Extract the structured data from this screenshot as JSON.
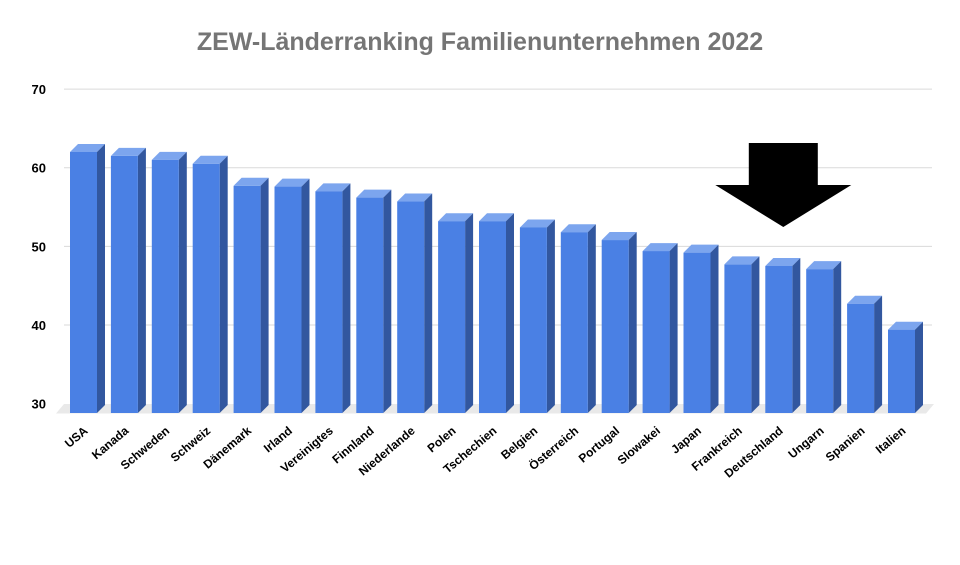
{
  "chart_data": {
    "type": "bar",
    "style": "3d-column",
    "title": "ZEW-Länderranking Familienunternehmen 2022",
    "categories": [
      "USA",
      "Kanada",
      "Schweden",
      "Schweiz",
      "Dänemark",
      "Irland",
      "Vereinigtes",
      "Finnland",
      "Niederlande",
      "Polen",
      "Tschechien",
      "Belgien",
      "Österreich",
      "Portugal",
      "Slowakei",
      "Japan",
      "Frankreich",
      "Deutschland",
      "Ungarn",
      "Spanien",
      "Italien"
    ],
    "values": [
      62.0,
      61.5,
      61.0,
      60.5,
      57.7,
      57.6,
      57.0,
      56.2,
      55.7,
      53.2,
      53.2,
      52.4,
      51.8,
      50.8,
      49.4,
      49.2,
      47.7,
      47.5,
      47.1,
      42.7,
      39.4
    ],
    "xlabel": "",
    "ylabel": "",
    "ylim": [
      30,
      70
    ],
    "yticks": [
      70,
      60,
      50,
      40,
      30
    ],
    "grid": true,
    "legend": false,
    "annotation": {
      "type": "down-arrow",
      "target_category": "Deutschland"
    },
    "colors": {
      "bar_front": "#4a80e4",
      "bar_top": "#7ca5ee",
      "bar_side": "#32579f",
      "floor": "#e9e9e9",
      "gridline": "#dadada",
      "title": "#757575",
      "axis_label": "#000000",
      "annotation": "#000000",
      "background": "#ffffff"
    }
  }
}
